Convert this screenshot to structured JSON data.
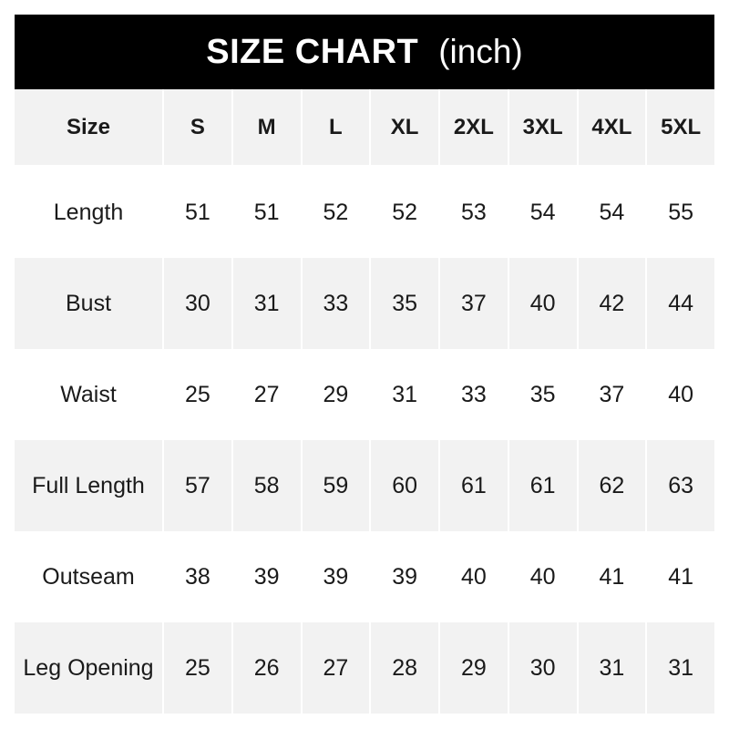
{
  "title": {
    "main": "SIZE CHART",
    "unit": "(inch)"
  },
  "colors": {
    "title_bg": "#000000",
    "title_text": "#ffffff",
    "shaded_row": "#f2f2f2",
    "text": "#1a1a1a"
  },
  "chart_data": {
    "type": "table",
    "title": "SIZE CHART (inch)",
    "header_label": "Size",
    "columns": [
      "S",
      "M",
      "L",
      "XL",
      "2XL",
      "3XL",
      "4XL",
      "5XL"
    ],
    "rows": [
      {
        "label": "Length",
        "values": [
          51,
          51,
          52,
          52,
          53,
          54,
          54,
          55
        ]
      },
      {
        "label": "Bust",
        "values": [
          30,
          31,
          33,
          35,
          37,
          40,
          42,
          44
        ]
      },
      {
        "label": "Waist",
        "values": [
          25,
          27,
          29,
          31,
          33,
          35,
          37,
          40
        ]
      },
      {
        "label": "Full Length",
        "values": [
          57,
          58,
          59,
          60,
          61,
          61,
          62,
          63
        ]
      },
      {
        "label": "Outseam",
        "values": [
          38,
          39,
          39,
          39,
          40,
          40,
          41,
          41
        ]
      },
      {
        "label": "Leg Opening",
        "values": [
          25,
          26,
          27,
          28,
          29,
          30,
          31,
          31
        ]
      }
    ]
  }
}
